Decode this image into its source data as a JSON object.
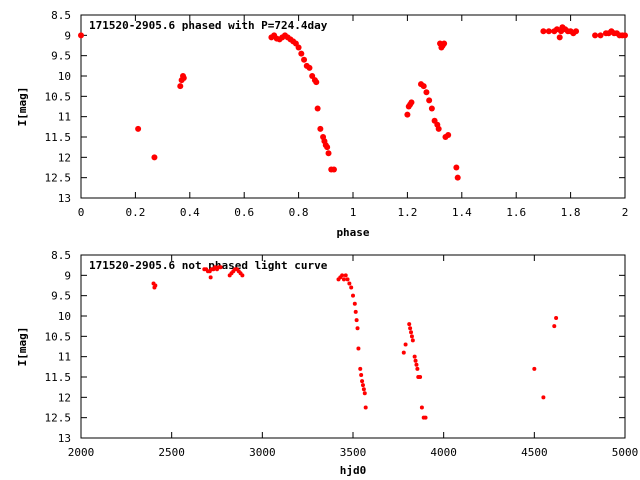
{
  "chart_data": [
    {
      "type": "scatter",
      "title": "171520-2905.6 phased with P=724.4day",
      "xlabel": "phase",
      "ylabel": "I[mag]",
      "xlim": [
        0,
        2
      ],
      "ylim": [
        8.5,
        13
      ],
      "y_inverted": true,
      "xticks": [
        "0",
        "0.2",
        "0.4",
        "0.6",
        "0.8",
        "1",
        "1.2",
        "1.4",
        "1.6",
        "1.8",
        "2"
      ],
      "yticks": [
        "8.5",
        "9",
        "9.5",
        "10",
        "10.5",
        "11",
        "11.5",
        "12",
        "12.5",
        "13"
      ],
      "grid": false,
      "marker_color": "#ff0000",
      "series": [
        {
          "x": [
            0.0,
            0.21,
            0.27,
            0.365,
            0.37,
            0.375,
            0.378,
            0.7,
            0.71,
            0.72,
            0.73,
            0.74,
            0.75,
            0.76,
            0.77,
            0.78,
            0.79,
            0.8,
            0.81,
            0.82,
            0.83,
            0.84,
            0.85,
            0.86,
            0.865,
            0.87,
            0.88,
            0.89,
            0.895,
            0.9,
            0.905,
            0.91,
            0.92,
            0.93,
            1.2,
            1.205,
            1.21,
            1.215,
            1.25,
            1.26,
            1.27,
            1.28,
            1.29,
            1.3,
            1.31,
            1.315,
            1.32,
            1.325,
            1.33,
            1.335,
            1.34,
            1.35,
            1.38,
            1.385,
            1.7,
            1.72,
            1.74,
            1.75,
            1.76,
            1.765,
            1.77,
            1.78,
            1.79,
            1.8,
            1.81,
            1.82,
            1.89,
            1.91,
            1.93,
            1.94,
            1.95,
            1.96,
            1.97,
            1.98,
            1.99,
            2.0
          ],
          "y": [
            9.0,
            11.3,
            12.0,
            10.25,
            10.1,
            10.0,
            10.05,
            9.05,
            9.0,
            9.08,
            9.1,
            9.05,
            9.0,
            9.05,
            9.1,
            9.15,
            9.2,
            9.3,
            9.45,
            9.6,
            9.75,
            9.8,
            10.0,
            10.1,
            10.15,
            10.8,
            11.3,
            11.5,
            11.6,
            11.7,
            11.75,
            11.9,
            12.3,
            12.3,
            10.95,
            10.75,
            10.7,
            10.65,
            10.2,
            10.25,
            10.4,
            10.6,
            10.8,
            11.1,
            11.2,
            11.3,
            9.2,
            9.3,
            9.25,
            9.2,
            11.5,
            11.45,
            12.25,
            12.5,
            8.9,
            8.9,
            8.9,
            8.85,
            9.05,
            8.9,
            8.8,
            8.85,
            8.9,
            8.9,
            8.95,
            8.9,
            9.0,
            9.0,
            8.95,
            8.95,
            8.9,
            8.95,
            8.95,
            9.0,
            9.0,
            9.0
          ]
        }
      ]
    },
    {
      "type": "scatter",
      "title": "171520-2905.6 not phased light curve",
      "xlabel": "hjd0",
      "ylabel": "I[mag]",
      "xlim": [
        2000,
        5000
      ],
      "ylim": [
        8.5,
        13
      ],
      "y_inverted": true,
      "xticks": [
        "2000",
        "2500",
        "3000",
        "3500",
        "4000",
        "4500",
        "5000"
      ],
      "yticks": [
        "8.5",
        "9",
        "9.5",
        "10",
        "10.5",
        "11",
        "11.5",
        "12",
        "12.5",
        "13"
      ],
      "grid": false,
      "marker_color": "#ff0000",
      "series": [
        {
          "x": [
            2400,
            2405,
            2410,
            2680,
            2690,
            2700,
            2710,
            2715,
            2720,
            2730,
            2740,
            2750,
            2760,
            2770,
            2820,
            2830,
            2840,
            2850,
            2860,
            2870,
            2880,
            2890,
            3420,
            3430,
            3440,
            3450,
            3460,
            3470,
            3480,
            3490,
            3500,
            3510,
            3515,
            3520,
            3525,
            3530,
            3540,
            3545,
            3550,
            3555,
            3560,
            3565,
            3570,
            3780,
            3790,
            3810,
            3815,
            3820,
            3825,
            3830,
            3840,
            3845,
            3850,
            3855,
            3860,
            3870,
            3880,
            3890,
            3900,
            4500,
            4550,
            4610,
            4620
          ],
          "y": [
            9.2,
            9.3,
            9.25,
            8.85,
            8.85,
            8.9,
            8.9,
            9.05,
            8.85,
            8.85,
            8.8,
            8.85,
            8.8,
            8.8,
            9.0,
            8.95,
            8.9,
            8.85,
            8.85,
            8.9,
            8.95,
            9.0,
            9.1,
            9.05,
            9.0,
            9.1,
            9.0,
            9.1,
            9.2,
            9.3,
            9.5,
            9.7,
            9.9,
            10.1,
            10.3,
            10.8,
            11.3,
            11.45,
            11.6,
            11.7,
            11.8,
            11.9,
            12.25,
            10.9,
            10.7,
            10.2,
            10.3,
            10.4,
            10.5,
            10.6,
            11.0,
            11.1,
            11.2,
            11.3,
            11.5,
            11.5,
            12.25,
            12.5,
            12.5,
            11.3,
            12.0,
            10.25,
            10.05
          ]
        }
      ]
    }
  ]
}
